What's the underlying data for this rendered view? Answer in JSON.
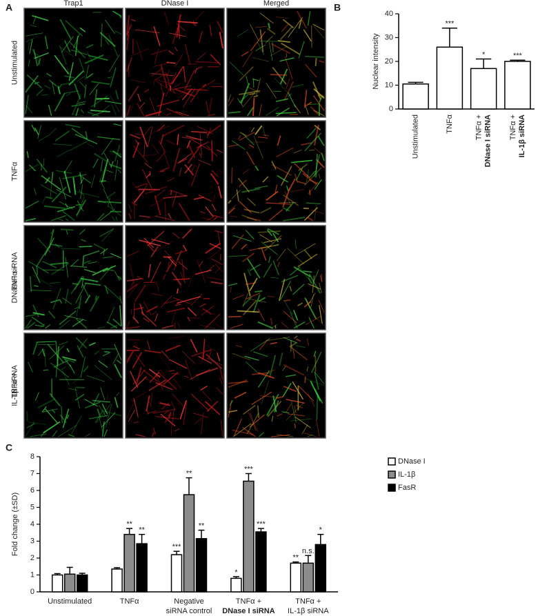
{
  "panel_labels": [
    "A",
    "B",
    "C"
  ],
  "figure_a": {
    "columns": [
      "Trap1",
      "DNase I",
      "Merged"
    ],
    "rows": [
      [
        "Unstimulated"
      ],
      [
        "TNFα"
      ],
      [
        "TNFα +",
        "DNase I siRNA"
      ],
      [
        "TNFα +",
        "IL-1β siRNA"
      ]
    ]
  },
  "chart_data": [
    {
      "type": "bar",
      "y_label": "Nuclear intensity",
      "categories": [
        [
          "Unstimulated"
        ],
        [
          "TNFα"
        ],
        [
          "TNFα +",
          "DNase I siRNA"
        ],
        [
          "TNFα +",
          "IL-1β siRNA"
        ]
      ],
      "values": [
        10.5,
        26,
        17,
        20
      ],
      "errors": [
        0.7,
        8,
        4,
        0.5
      ],
      "annotations": [
        null,
        "***",
        "*",
        "***"
      ],
      "color": "#ffffff",
      "ylim": [
        0,
        40
      ],
      "yticks": [
        0,
        10,
        20,
        30,
        40
      ]
    },
    {
      "type": "grouped_bar",
      "y_label": "Fold change (±SD)",
      "categories": [
        [
          "Unstimulated"
        ],
        [
          "TNFα"
        ],
        [
          "Negative",
          "siRNA control"
        ],
        [
          "TNFα +",
          "DNase I siRNA"
        ],
        [
          "TNFα +",
          "IL-1β siRNA"
        ]
      ],
      "series": [
        {
          "name": "DNase I",
          "color": "#ffffff",
          "values": [
            1.0,
            1.35,
            2.2,
            0.8,
            1.7
          ],
          "errors": [
            0.08,
            0.08,
            0.2,
            0.1,
            0.07
          ],
          "annotations": [
            null,
            null,
            "***",
            "*",
            "**"
          ]
        },
        {
          "name": "IL-1β",
          "color": "#8c8c8c",
          "values": [
            1.05,
            3.4,
            5.75,
            6.55,
            1.7
          ],
          "errors": [
            0.4,
            0.35,
            1.0,
            0.45,
            0.45
          ],
          "annotations": [
            null,
            "**",
            "**",
            "***",
            "n.s."
          ]
        },
        {
          "name": "FasR",
          "color": "#000000",
          "values": [
            1.0,
            2.85,
            3.15,
            3.55,
            2.8
          ],
          "errors": [
            0.1,
            0.55,
            0.5,
            0.2,
            0.6
          ],
          "annotations": [
            null,
            "**",
            "**",
            "***",
            "*"
          ]
        }
      ],
      "ylim": [
        0,
        8
      ],
      "yticks": [
        0,
        1,
        2,
        3,
        4,
        5,
        6,
        7,
        8
      ],
      "legend": "upper right"
    }
  ]
}
